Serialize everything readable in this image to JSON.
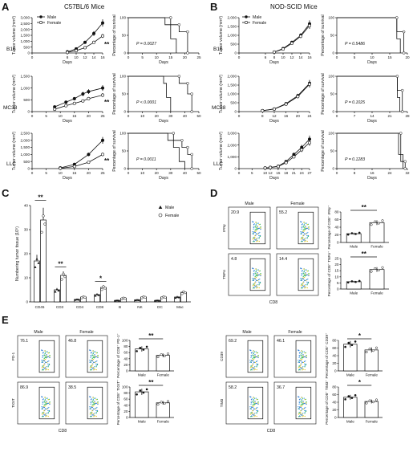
{
  "panel_labels": {
    "A": "A",
    "B": "B",
    "C": "C",
    "D": "D",
    "E": "E"
  },
  "panel_A": {
    "title": "C57BL/6 Mice",
    "legend": [
      "Male",
      "Female"
    ],
    "growth_ylabel": "Tumor volume (mm³)",
    "growth_xlabel": "Days",
    "survival_ylabel": "Percentage of survival",
    "survival_xlabel": "Days",
    "significance": "**",
    "rows": [
      "B16",
      "MC38",
      "LLC"
    ],
    "p_values": [
      "P = 0.0027",
      "P < 0.0001",
      "P = 0.0011"
    ]
  },
  "panel_B": {
    "title": "NOD-SCID Mice",
    "legend": [
      "Male",
      "Female"
    ],
    "growth_ylabel": "Tumor volume (mm³)",
    "growth_xlabel": "Days",
    "survival_ylabel": "Percentage of survival",
    "survival_xlabel": "Days",
    "rows": [
      "B16",
      "MC38",
      "LLC"
    ],
    "p_values": [
      "P = 0.5486",
      "P = 0.1025",
      "P = 0.1283"
    ]
  },
  "panel_C": {
    "ylabel": "Numbering tumor tissue (10⁵)",
    "legend": [
      "Male",
      "Female"
    ],
    "significance": [
      "**",
      "**",
      "*"
    ]
  },
  "panel_D": {
    "col_labels": [
      "Male",
      "Female"
    ],
    "row_labels": [
      "IFNγ",
      "TNFα"
    ],
    "xlabel": "CD8",
    "percentages": [
      "20.9",
      "55.2",
      "4.8",
      "14.4"
    ],
    "bar_ylabels": [
      "Percentage of CD8⁺ IFNγ⁺",
      "Percentage of CD8⁺ TNFα⁺"
    ],
    "bar_categories": [
      "Male",
      "Female"
    ],
    "significance": "**"
  },
  "panel_E_left": {
    "col_labels": [
      "Male",
      "Female"
    ],
    "row_labels": [
      "PD-1",
      "TIGIT"
    ],
    "xlabel": "CD8",
    "percentages": [
      "76.1",
      "46.8",
      "86.9",
      "38.5"
    ],
    "bar_ylabels": [
      "Percentage of CD8⁺ PD-1⁺",
      "Percentage of CD8⁺ TIGIT⁺"
    ],
    "bar_categories": [
      "Male",
      "Female"
    ],
    "significance": "**"
  },
  "panel_E_right": {
    "col_labels": [
      "Male",
      "Female"
    ],
    "row_labels": [
      "CD39",
      "TIM3"
    ],
    "xlabel": "CD8",
    "percentages": [
      "69.2",
      "46.1",
      "58.2",
      "36.7"
    ],
    "bar_ylabels": [
      "Percentage of CD8⁺ CD39⁺",
      "Percentage of CD8⁺ TIM3⁺"
    ],
    "bar_categories": [
      "Male",
      "Female"
    ],
    "significance": "*"
  },
  "chart_data": [
    {
      "id": "A-B16-growth",
      "type": "line",
      "ylabel": "Tumor volume (mm³)",
      "xlabel": "Days",
      "x": [
        8,
        10,
        12,
        14,
        16
      ],
      "ylim": [
        0,
        3000
      ],
      "x_ticks": [
        "0",
        "8",
        "10",
        "12",
        "14",
        "16"
      ],
      "y_ticks": [
        "0",
        "500",
        "1,000",
        "1,500",
        "2,000",
        "2,500",
        "3,000"
      ],
      "series": [
        {
          "name": "Male",
          "values": [
            100,
            350,
            900,
            1650,
            2550
          ]
        },
        {
          "name": "Female",
          "values": [
            50,
            200,
            450,
            900,
            1450
          ]
        }
      ]
    },
    {
      "id": "A-B16-survival",
      "type": "line",
      "ylabel": "Percentage of survival",
      "xlabel": "Days",
      "xlim": [
        0,
        25
      ],
      "ylim": [
        0,
        100
      ],
      "x_ticks": [
        "0",
        "5",
        "10",
        "15",
        "20",
        "25"
      ],
      "y_ticks": [
        "0",
        "50",
        "100"
      ],
      "series": [
        {
          "name": "Male",
          "x": [
            0,
            13,
            13,
            15,
            15,
            17,
            17
          ],
          "values": [
            100,
            100,
            80,
            80,
            40,
            40,
            0
          ]
        },
        {
          "name": "Female",
          "x": [
            0,
            15,
            15,
            18,
            18,
            21,
            21
          ],
          "values": [
            100,
            100,
            80,
            80,
            60,
            60,
            0
          ]
        }
      ]
    },
    {
      "id": "A-MC38-growth",
      "type": "line",
      "ylabel": "Tumor volume (mm³)",
      "xlabel": "Days",
      "x": [
        8,
        12,
        15,
        18,
        20,
        25
      ],
      "ylim": [
        0,
        1500
      ],
      "x_ticks": [
        "0",
        "5",
        "10",
        "15",
        "20",
        "25"
      ],
      "y_ticks": [
        "0",
        "500",
        "1,000",
        "1,500"
      ],
      "series": [
        {
          "name": "Male",
          "values": [
            200,
            400,
            550,
            750,
            850,
            1000
          ]
        },
        {
          "name": "Female",
          "values": [
            100,
            250,
            350,
            450,
            550,
            700
          ]
        }
      ]
    },
    {
      "id": "A-MC38-survival",
      "type": "line",
      "ylabel": "Percentage of survival",
      "xlabel": "Days",
      "xlim": [
        0,
        50
      ],
      "ylim": [
        0,
        100
      ],
      "x_ticks": [
        "0",
        "10",
        "20",
        "30",
        "40",
        "50"
      ],
      "y_ticks": [
        "0",
        "50",
        "100"
      ],
      "series": [
        {
          "name": "Male",
          "x": [
            0,
            25,
            25,
            27,
            27,
            30,
            30
          ],
          "values": [
            100,
            100,
            80,
            80,
            40,
            40,
            0
          ]
        },
        {
          "name": "Female",
          "x": [
            0,
            36,
            36,
            42,
            42,
            45,
            45
          ],
          "values": [
            100,
            100,
            80,
            80,
            50,
            50,
            0
          ]
        }
      ]
    },
    {
      "id": "A-LLC-growth",
      "type": "line",
      "ylabel": "Tumor volume (mm³)",
      "xlabel": "Days",
      "x": [
        10,
        15,
        20,
        25
      ],
      "ylim": [
        0,
        2500
      ],
      "x_ticks": [
        "0",
        "5",
        "10",
        "15",
        "20",
        "25"
      ],
      "y_ticks": [
        "0",
        "500",
        "1,000",
        "1,500",
        "2,000",
        "2,500"
      ],
      "series": [
        {
          "name": "Male",
          "values": [
            50,
            300,
            1000,
            2000
          ]
        },
        {
          "name": "Female",
          "values": [
            20,
            150,
            450,
            1000
          ]
        }
      ]
    },
    {
      "id": "A-LLC-survival",
      "type": "line",
      "ylabel": "Percentage of survival",
      "xlabel": "Days",
      "xlim": [
        0,
        50
      ],
      "ylim": [
        0,
        100
      ],
      "x_ticks": [
        "0",
        "10",
        "20",
        "30",
        "40",
        "50"
      ],
      "y_ticks": [
        "0",
        "50",
        "100"
      ],
      "series": [
        {
          "name": "Male",
          "x": [
            0,
            28,
            28,
            32,
            32,
            36,
            36,
            40,
            40
          ],
          "values": [
            100,
            100,
            80,
            80,
            60,
            60,
            20,
            20,
            0
          ]
        },
        {
          "name": "Female",
          "x": [
            0,
            32,
            32,
            38,
            38,
            42,
            42,
            45,
            45
          ],
          "values": [
            100,
            100,
            80,
            80,
            60,
            60,
            40,
            40,
            0
          ]
        }
      ]
    },
    {
      "id": "B-B16-growth",
      "type": "line",
      "ylabel": "Tumor volume (mm³)",
      "xlabel": "Days",
      "x": [
        8,
        10,
        12,
        14,
        16
      ],
      "ylim": [
        0,
        2000
      ],
      "x_ticks": [
        "0",
        "6",
        "8",
        "10",
        "12",
        "14",
        "16"
      ],
      "y_ticks": [
        "0",
        "500",
        "1,000",
        "1,500",
        "2,000"
      ],
      "series": [
        {
          "name": "Male",
          "values": [
            50,
            250,
            600,
            1000,
            1650
          ]
        },
        {
          "name": "Female",
          "values": [
            50,
            220,
            550,
            950,
            1550
          ]
        }
      ]
    },
    {
      "id": "B-B16-survival",
      "type": "line",
      "ylabel": "Percentage of survival",
      "xlabel": "Days",
      "xlim": [
        0,
        20
      ],
      "ylim": [
        0,
        100
      ],
      "x_ticks": [
        "0",
        "5",
        "10",
        "15",
        "20"
      ],
      "y_ticks": [
        "0",
        "50",
        "100"
      ],
      "series": [
        {
          "name": "Male",
          "x": [
            0,
            17,
            17,
            18,
            18
          ],
          "values": [
            100,
            100,
            40,
            40,
            0
          ]
        },
        {
          "name": "Female",
          "x": [
            0,
            17,
            17,
            19,
            19
          ],
          "values": [
            100,
            100,
            60,
            60,
            0
          ]
        }
      ]
    },
    {
      "id": "B-MC38-growth",
      "type": "line",
      "ylabel": "Tumor volume (mm³)",
      "xlabel": "Days",
      "x": [
        8,
        12,
        16,
        20,
        24
      ],
      "ylim": [
        0,
        2000
      ],
      "x_ticks": [
        "0",
        "8",
        "12",
        "16",
        "20",
        "24"
      ],
      "y_ticks": [
        "0",
        "500",
        "1,000",
        "1,500",
        "2,000"
      ],
      "series": [
        {
          "name": "Male",
          "values": [
            50,
            150,
            450,
            900,
            1600
          ]
        },
        {
          "name": "Female",
          "values": [
            50,
            140,
            420,
            850,
            1550
          ]
        }
      ]
    },
    {
      "id": "B-MC38-survival",
      "type": "line",
      "ylabel": "Percentage of survival",
      "xlabel": "Days",
      "xlim": [
        0,
        28
      ],
      "ylim": [
        0,
        100
      ],
      "x_ticks": [
        "0",
        "7",
        "14",
        "21",
        "28"
      ],
      "y_ticks": [
        "0",
        "50",
        "100"
      ],
      "series": [
        {
          "name": "Male",
          "x": [
            0,
            24,
            24,
            25,
            25
          ],
          "values": [
            100,
            100,
            40,
            40,
            0
          ]
        },
        {
          "name": "Female",
          "x": [
            0,
            24,
            24,
            26,
            26
          ],
          "values": [
            100,
            100,
            60,
            60,
            0
          ]
        }
      ]
    },
    {
      "id": "B-LLC-growth",
      "type": "line",
      "ylabel": "Tumor volume (mm³)",
      "xlabel": "Days",
      "x": [
        10,
        12,
        15,
        18,
        21,
        24,
        27
      ],
      "ylim": [
        0,
        3000
      ],
      "x_ticks": [
        "0",
        "5",
        "10",
        "12",
        "15",
        "18",
        "21",
        "24",
        "27"
      ],
      "y_ticks": [
        "0",
        "1,000",
        "2,000",
        "3,000"
      ],
      "series": [
        {
          "name": "Male",
          "values": [
            50,
            100,
            200,
            600,
            1200,
            1800,
            2500
          ]
        },
        {
          "name": "Female",
          "values": [
            50,
            90,
            180,
            500,
            1000,
            1600,
            2200
          ]
        }
      ]
    },
    {
      "id": "B-LLC-survival",
      "type": "line",
      "ylabel": "Percentage of survival",
      "xlabel": "Days",
      "xlim": [
        0,
        32
      ],
      "ylim": [
        0,
        100
      ],
      "x_ticks": [
        "0",
        "8",
        "16",
        "24",
        "32"
      ],
      "y_ticks": [
        "0",
        "50",
        "100"
      ],
      "series": [
        {
          "name": "Male",
          "x": [
            0,
            28,
            28,
            30,
            30
          ],
          "values": [
            100,
            100,
            40,
            40,
            0
          ]
        },
        {
          "name": "Female",
          "x": [
            0,
            29,
            29,
            31,
            31
          ],
          "values": [
            100,
            100,
            20,
            20,
            0
          ]
        }
      ]
    },
    {
      "id": "C-cell-counts",
      "type": "bar",
      "ylabel": "Numbering tumor tissue (10⁵)",
      "categories": [
        "CD45",
        "CD3",
        "CD4",
        "CD8",
        "B",
        "NK",
        "DC",
        "Mac"
      ],
      "ylim": [
        0,
        40
      ],
      "y_ticks": [
        "0",
        "10",
        "20",
        "30",
        "40"
      ],
      "series": [
        {
          "name": "Male",
          "values": [
            17,
            5,
            1,
            3,
            0.6,
            0.8,
            0.6,
            2
          ]
        },
        {
          "name": "Female",
          "values": [
            34,
            11,
            2,
            6,
            1.5,
            2,
            2,
            4
          ]
        }
      ]
    },
    {
      "id": "D-IFNg",
      "type": "bar",
      "ylabel": "Percentage of CD8⁺ IFNγ⁺",
      "categories": [
        "Male",
        "Female"
      ],
      "values": [
        23,
        52
      ],
      "ylim": [
        0,
        80
      ],
      "y_ticks": [
        "0",
        "20",
        "40",
        "60",
        "80"
      ]
    },
    {
      "id": "D-TNFa",
      "type": "bar",
      "ylabel": "Percentage of CD8⁺ TNFα⁺",
      "categories": [
        "Male",
        "Female"
      ],
      "values": [
        6,
        16
      ],
      "ylim": [
        0,
        25
      ],
      "y_ticks": [
        "0",
        "5",
        "10",
        "15",
        "20",
        "25"
      ]
    },
    {
      "id": "E-PD1",
      "type": "bar",
      "ylabel": "Percentage of CD8⁺ PD-1⁺",
      "categories": [
        "Male",
        "Female"
      ],
      "values": [
        72,
        51
      ],
      "ylim": [
        0,
        100
      ],
      "y_ticks": [
        "0",
        "20",
        "40",
        "60",
        "80",
        "100"
      ]
    },
    {
      "id": "E-TIGIT",
      "type": "bar",
      "ylabel": "Percentage of CD8⁺ TIGIT⁺",
      "categories": [
        "Male",
        "Female"
      ],
      "values": [
        84,
        48
      ],
      "ylim": [
        0,
        100
      ],
      "y_ticks": [
        "0",
        "20",
        "40",
        "60",
        "80",
        "100"
      ]
    },
    {
      "id": "E-CD39",
      "type": "bar",
      "ylabel": "Percentage of CD8⁺ CD39⁺",
      "categories": [
        "Male",
        "Female"
      ],
      "values": [
        70,
        55
      ],
      "ylim": [
        0,
        80
      ],
      "y_ticks": [
        "0",
        "20",
        "40",
        "60",
        "80"
      ]
    },
    {
      "id": "E-TIM3",
      "type": "bar",
      "ylabel": "Percentage of CD8⁺ TIM3⁺",
      "categories": [
        "Male",
        "Female"
      ],
      "values": [
        53,
        42
      ],
      "ylim": [
        0,
        80
      ],
      "y_ticks": [
        "0",
        "20",
        "40",
        "60",
        "80"
      ]
    }
  ]
}
